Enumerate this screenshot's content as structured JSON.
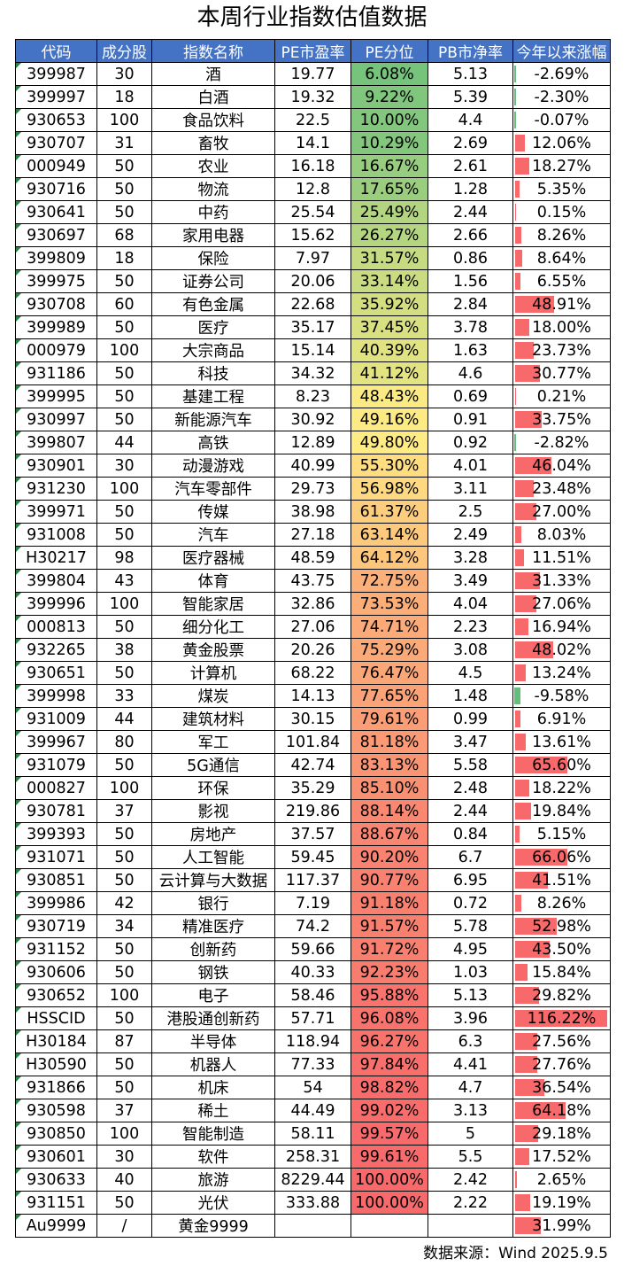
{
  "title": "本周行业指数估值数据",
  "headers": [
    "代码",
    "成分股",
    "指数名称",
    "PE市盈率",
    "PE分位",
    "PB市净率",
    "今年以来涨幅"
  ],
  "rows": [
    {
      "code": "399987",
      "stocks": "30",
      "name": "酒",
      "pe": "19.77",
      "pe_pct": "6.08%",
      "pb": "5.13",
      "ytd": "-2.69%"
    },
    {
      "code": "399997",
      "stocks": "18",
      "name": "白酒",
      "pe": "19.32",
      "pe_pct": "9.22%",
      "pb": "5.39",
      "ytd": "-2.30%"
    },
    {
      "code": "930653",
      "stocks": "100",
      "name": "食品饮料",
      "pe": "22.5",
      "pe_pct": "10.00%",
      "pb": "4.4",
      "ytd": "-0.07%"
    },
    {
      "code": "930707",
      "stocks": "31",
      "name": "畜牧",
      "pe": "14.1",
      "pe_pct": "10.29%",
      "pb": "2.69",
      "ytd": "12.06%"
    },
    {
      "code": "000949",
      "stocks": "50",
      "name": "农业",
      "pe": "16.18",
      "pe_pct": "16.67%",
      "pb": "2.61",
      "ytd": "18.27%"
    },
    {
      "code": "930716",
      "stocks": "50",
      "name": "物流",
      "pe": "12.8",
      "pe_pct": "17.65%",
      "pb": "1.28",
      "ytd": "5.35%"
    },
    {
      "code": "930641",
      "stocks": "50",
      "name": "中药",
      "pe": "25.54",
      "pe_pct": "25.49%",
      "pb": "2.44",
      "ytd": "0.15%"
    },
    {
      "code": "930697",
      "stocks": "68",
      "name": "家用电器",
      "pe": "15.62",
      "pe_pct": "26.27%",
      "pb": "2.66",
      "ytd": "8.26%"
    },
    {
      "code": "399809",
      "stocks": "18",
      "name": "保险",
      "pe": "7.97",
      "pe_pct": "31.57%",
      "pb": "0.86",
      "ytd": "8.64%"
    },
    {
      "code": "399975",
      "stocks": "50",
      "name": "证券公司",
      "pe": "20.06",
      "pe_pct": "33.14%",
      "pb": "1.56",
      "ytd": "6.55%"
    },
    {
      "code": "930708",
      "stocks": "60",
      "name": "有色金属",
      "pe": "22.68",
      "pe_pct": "35.92%",
      "pb": "2.84",
      "ytd": "48.91%"
    },
    {
      "code": "399989",
      "stocks": "50",
      "name": "医疗",
      "pe": "35.17",
      "pe_pct": "37.45%",
      "pb": "3.78",
      "ytd": "18.00%"
    },
    {
      "code": "000979",
      "stocks": "100",
      "name": "大宗商品",
      "pe": "15.14",
      "pe_pct": "40.39%",
      "pb": "1.63",
      "ytd": "23.73%"
    },
    {
      "code": "931186",
      "stocks": "50",
      "name": "科技",
      "pe": "34.32",
      "pe_pct": "41.12%",
      "pb": "4.6",
      "ytd": "30.77%"
    },
    {
      "code": "399995",
      "stocks": "50",
      "name": "基建工程",
      "pe": "8.23",
      "pe_pct": "48.43%",
      "pb": "0.69",
      "ytd": "0.21%"
    },
    {
      "code": "930997",
      "stocks": "50",
      "name": "新能源汽车",
      "pe": "30.92",
      "pe_pct": "49.16%",
      "pb": "0.91",
      "ytd": "33.75%"
    },
    {
      "code": "399807",
      "stocks": "44",
      "name": "高铁",
      "pe": "12.89",
      "pe_pct": "49.80%",
      "pb": "0.92",
      "ytd": "-2.82%"
    },
    {
      "code": "930901",
      "stocks": "30",
      "name": "动漫游戏",
      "pe": "40.99",
      "pe_pct": "55.30%",
      "pb": "4.01",
      "ytd": "46.04%"
    },
    {
      "code": "931230",
      "stocks": "100",
      "name": "汽车零部件",
      "pe": "29.73",
      "pe_pct": "56.98%",
      "pb": "3.11",
      "ytd": "23.48%"
    },
    {
      "code": "399971",
      "stocks": "50",
      "name": "传媒",
      "pe": "38.98",
      "pe_pct": "61.37%",
      "pb": "2.5",
      "ytd": "27.00%"
    },
    {
      "code": "931008",
      "stocks": "50",
      "name": "汽车",
      "pe": "27.18",
      "pe_pct": "63.14%",
      "pb": "2.49",
      "ytd": "8.03%"
    },
    {
      "code": "H30217",
      "stocks": "98",
      "name": "医疗器械",
      "pe": "48.59",
      "pe_pct": "64.12%",
      "pb": "3.28",
      "ytd": "11.51%"
    },
    {
      "code": "399804",
      "stocks": "43",
      "name": "体育",
      "pe": "43.75",
      "pe_pct": "72.75%",
      "pb": "3.49",
      "ytd": "31.33%"
    },
    {
      "code": "399996",
      "stocks": "100",
      "name": "智能家居",
      "pe": "32.86",
      "pe_pct": "73.53%",
      "pb": "4.04",
      "ytd": "27.06%"
    },
    {
      "code": "000813",
      "stocks": "50",
      "name": "细分化工",
      "pe": "27.06",
      "pe_pct": "74.71%",
      "pb": "2.23",
      "ytd": "16.94%"
    },
    {
      "code": "932265",
      "stocks": "38",
      "name": "黄金股票",
      "pe": "20.26",
      "pe_pct": "75.29%",
      "pb": "3.08",
      "ytd": "48.02%"
    },
    {
      "code": "930651",
      "stocks": "50",
      "name": "计算机",
      "pe": "68.22",
      "pe_pct": "76.47%",
      "pb": "4.5",
      "ytd": "13.24%"
    },
    {
      "code": "399998",
      "stocks": "33",
      "name": "煤炭",
      "pe": "14.13",
      "pe_pct": "77.65%",
      "pb": "1.48",
      "ytd": "-9.58%"
    },
    {
      "code": "931009",
      "stocks": "44",
      "name": "建筑材料",
      "pe": "30.15",
      "pe_pct": "79.61%",
      "pb": "0.99",
      "ytd": "6.91%"
    },
    {
      "code": "399967",
      "stocks": "80",
      "name": "军工",
      "pe": "101.84",
      "pe_pct": "81.18%",
      "pb": "3.47",
      "ytd": "13.61%"
    },
    {
      "code": "931079",
      "stocks": "50",
      "name": "5G通信",
      "pe": "42.74",
      "pe_pct": "83.13%",
      "pb": "5.58",
      "ytd": "65.60%"
    },
    {
      "code": "000827",
      "stocks": "100",
      "name": "环保",
      "pe": "35.29",
      "pe_pct": "85.10%",
      "pb": "2.48",
      "ytd": "18.22%"
    },
    {
      "code": "930781",
      "stocks": "37",
      "name": "影视",
      "pe": "219.86",
      "pe_pct": "88.14%",
      "pb": "2.44",
      "ytd": "19.84%"
    },
    {
      "code": "399393",
      "stocks": "50",
      "name": "房地产",
      "pe": "37.57",
      "pe_pct": "88.67%",
      "pb": "0.84",
      "ytd": "5.15%"
    },
    {
      "code": "931071",
      "stocks": "50",
      "name": "人工智能",
      "pe": "59.45",
      "pe_pct": "90.20%",
      "pb": "6.7",
      "ytd": "66.06%"
    },
    {
      "code": "930851",
      "stocks": "50",
      "name": "云计算与大数据",
      "pe": "117.37",
      "pe_pct": "90.77%",
      "pb": "6.95",
      "ytd": "41.51%"
    },
    {
      "code": "399986",
      "stocks": "42",
      "name": "银行",
      "pe": "7.19",
      "pe_pct": "91.18%",
      "pb": "0.72",
      "ytd": "8.26%"
    },
    {
      "code": "930719",
      "stocks": "34",
      "name": "精准医疗",
      "pe": "74.2",
      "pe_pct": "91.57%",
      "pb": "5.78",
      "ytd": "52.98%"
    },
    {
      "code": "931152",
      "stocks": "50",
      "name": "创新药",
      "pe": "59.66",
      "pe_pct": "91.72%",
      "pb": "4.95",
      "ytd": "43.50%"
    },
    {
      "code": "930606",
      "stocks": "50",
      "name": "钢铁",
      "pe": "40.33",
      "pe_pct": "92.23%",
      "pb": "1.03",
      "ytd": "15.84%"
    },
    {
      "code": "930652",
      "stocks": "100",
      "name": "电子",
      "pe": "58.46",
      "pe_pct": "95.88%",
      "pb": "5.13",
      "ytd": "29.82%"
    },
    {
      "code": "HSSCID",
      "stocks": "50",
      "name": "港股通创新药",
      "pe": "57.71",
      "pe_pct": "96.08%",
      "pb": "3.96",
      "ytd": "116.22%"
    },
    {
      "code": "H30184",
      "stocks": "87",
      "name": "半导体",
      "pe": "118.94",
      "pe_pct": "96.27%",
      "pb": "6.3",
      "ytd": "27.56%"
    },
    {
      "code": "H30590",
      "stocks": "50",
      "name": "机器人",
      "pe": "77.33",
      "pe_pct": "97.84%",
      "pb": "4.41",
      "ytd": "27.76%"
    },
    {
      "code": "931866",
      "stocks": "50",
      "name": "机床",
      "pe": "54",
      "pe_pct": "98.82%",
      "pb": "4.7",
      "ytd": "36.54%"
    },
    {
      "code": "930598",
      "stocks": "37",
      "name": "稀土",
      "pe": "44.49",
      "pe_pct": "99.02%",
      "pb": "3.13",
      "ytd": "64.18%"
    },
    {
      "code": "930850",
      "stocks": "100",
      "name": "智能制造",
      "pe": "58.11",
      "pe_pct": "99.57%",
      "pb": "5",
      "ytd": "29.18%"
    },
    {
      "code": "930601",
      "stocks": "30",
      "name": "软件",
      "pe": "258.31",
      "pe_pct": "99.61%",
      "pb": "5.5",
      "ytd": "17.52%"
    },
    {
      "code": "930633",
      "stocks": "40",
      "name": "旅游",
      "pe": "8229.44",
      "pe_pct": "100.00%",
      "pb": "2.42",
      "ytd": "2.65%"
    },
    {
      "code": "931151",
      "stocks": "50",
      "name": "光伏",
      "pe": "333.88",
      "pe_pct": "100.00%",
      "pb": "2.22",
      "ytd": "19.19%"
    },
    {
      "code": "Au9999",
      "stocks": "/",
      "name": "黄金9999",
      "pe": "",
      "pe_pct": "",
      "pb": "",
      "ytd": "31.99%"
    }
  ],
  "colors": {
    "header_bg": "#4472c4",
    "scale_low": "#63be7b",
    "scale_mid": "#ffeb84",
    "scale_high": "#f8696b",
    "bar_positive": "#f8696b",
    "bar_negative": "#63be7b"
  },
  "source": "数据来源：Wind 2025.9.5"
}
